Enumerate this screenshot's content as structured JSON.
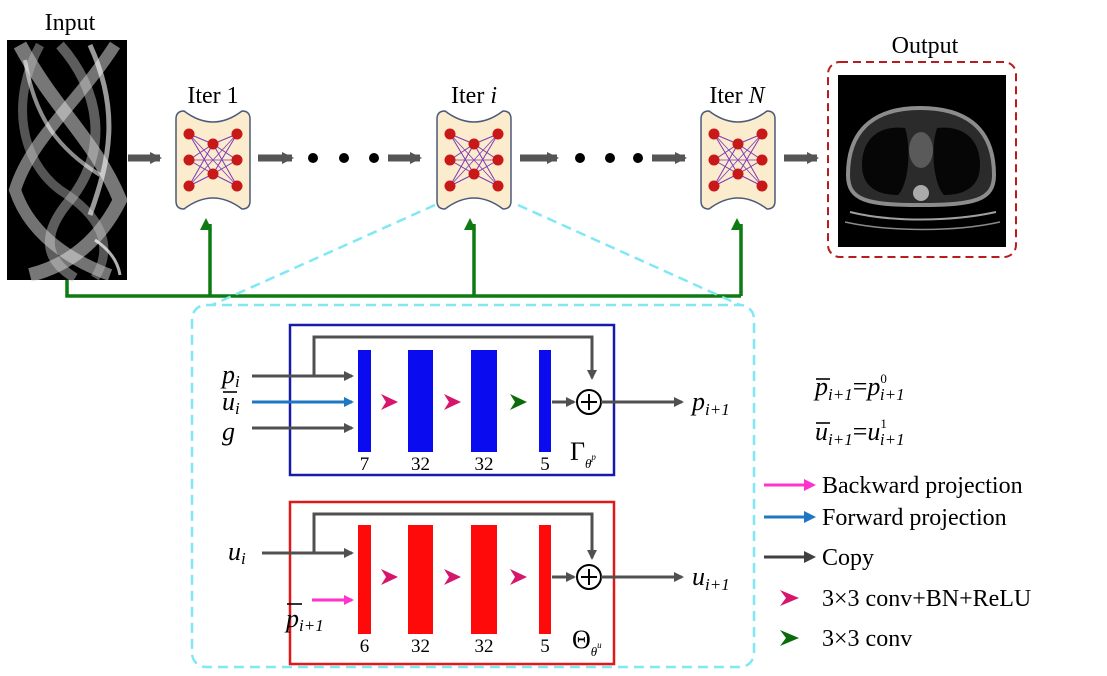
{
  "pipeline": {
    "input_label": "Input",
    "output_label": "Output",
    "iter_prefix": "Iter ",
    "iterations": [
      "1",
      "i",
      "N"
    ]
  },
  "dual_block": {
    "inputs": [
      "p",
      "u",
      "g"
    ],
    "input_subscripts": [
      "i",
      "i",
      ""
    ],
    "output": "p",
    "output_subscript": "i+1",
    "channels": [
      "7",
      "32",
      "32",
      "5"
    ],
    "operator": "Γ",
    "operator_sup": "θ",
    "operator_sup_sub": "p"
  },
  "primal_block": {
    "inputs": [
      "u",
      "p"
    ],
    "input_subscripts": [
      "i",
      "i+1"
    ],
    "output": "u",
    "output_subscript": "i+1",
    "channels": [
      "6",
      "32",
      "32",
      "5"
    ],
    "operator": "Θ",
    "operator_sup": "θ",
    "operator_sup_sub": "u"
  },
  "equations": [
    {
      "lhs": "p",
      "lhs_sub": "i+1",
      "rhs": "p",
      "rhs_sup": "0",
      "rhs_sub": "i+1"
    },
    {
      "lhs": "u",
      "lhs_sub": "i+1",
      "rhs": "u",
      "rhs_sup": "1",
      "rhs_sub": "i+1"
    }
  ],
  "legend": [
    {
      "label": "Backward projection",
      "color": "#ff33cc",
      "kind": "arrow"
    },
    {
      "label": "Forward projection",
      "color": "#1f77c4",
      "kind": "arrow"
    },
    {
      "label": "Copy",
      "color": "#404040",
      "kind": "arrow"
    },
    {
      "label": "3×3 conv+BN+ReLU",
      "color": "#d6156d",
      "kind": "chevron"
    },
    {
      "label": "3×3 conv",
      "color": "#0a6b0a",
      "kind": "chevron"
    }
  ],
  "colors": {
    "dual_frame": "#1a1aa8",
    "primal_frame": "#e01818",
    "dual_bar": "#0b0bf0",
    "primal_bar": "#ff0a0a",
    "skip_line": "#0e7a12",
    "zoom_frame": "#7fe8f4",
    "output_frame": "#b81c1c",
    "iter_box": "#fbeccd",
    "node": "#c81818",
    "edge": "#7b39b8"
  }
}
